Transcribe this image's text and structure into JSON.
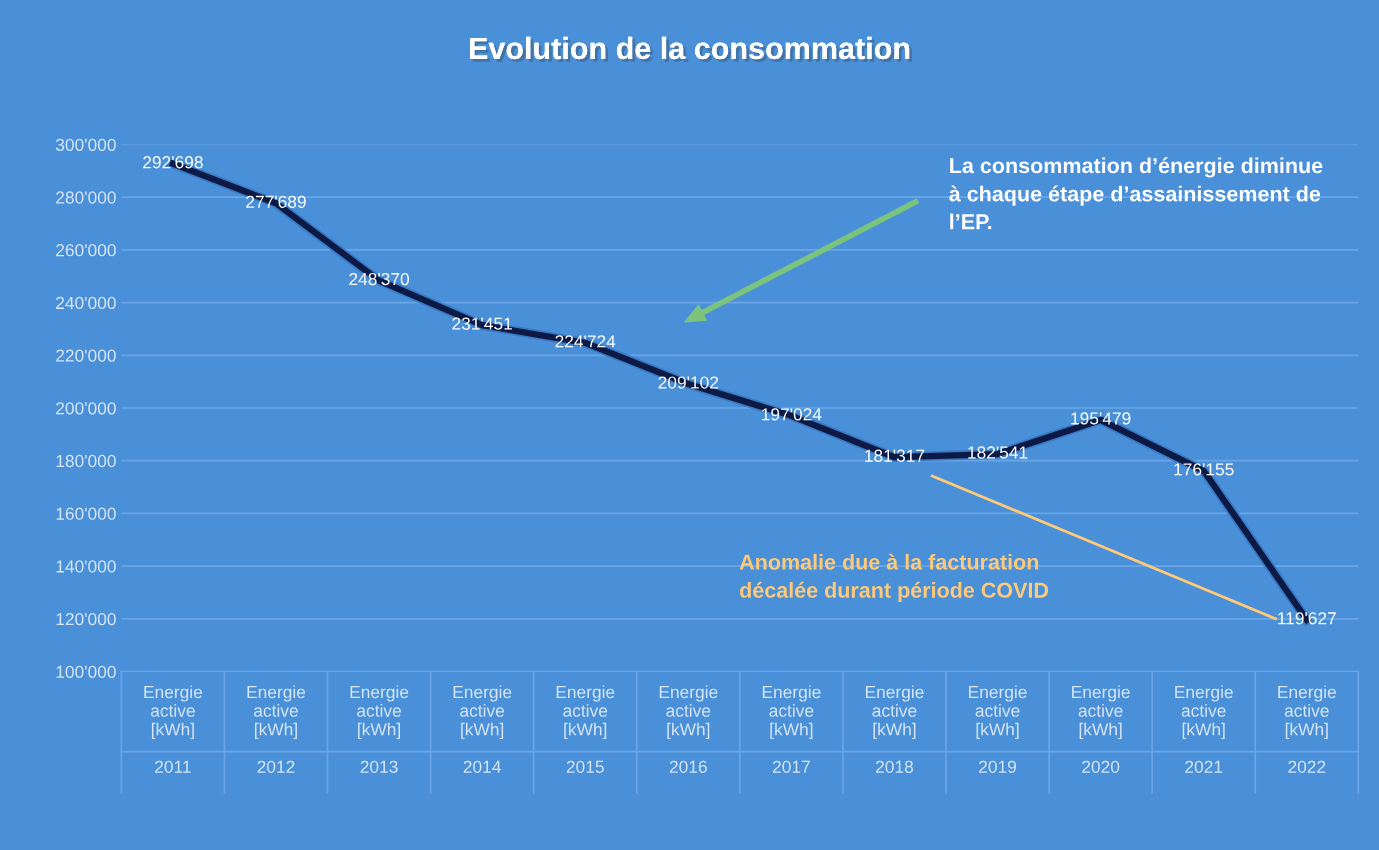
{
  "chart_data": {
    "type": "line",
    "title": "Evolution de la consommation",
    "categories": [
      "Energie\nactive\n[kWh]\n\n2011",
      "Energie\nactive\n[kWh]\n\n2012",
      "Energie\nactive\n[kWh]\n\n2013",
      "Energie\nactive\n[kWh]\n\n2014",
      "Energie\nactive\n[kWh]\n\n2015",
      "Energie\nactive\n[kWh]\n\n2016",
      "Energie\nactive\n[kWh]\n\n2017",
      "Energie\nactive\n[kWh]\n\n2018",
      "Energie\nactive\n[kWh]\n\n2019",
      "Energie\nactive\n[kWh]\n\n2020",
      "Energie\nactive\n[kWh]\n\n2021",
      "Energie\nactive\n[kWh]\n\n2022"
    ],
    "series": [
      {
        "color": "#0d1a45",
        "values": [
          292698,
          277689,
          248370,
          231451,
          224724,
          209102,
          197024,
          181317,
          182541,
          195479,
          176155,
          119627
        ],
        "value_labels": [
          "292'698",
          "277'689",
          "248'370",
          "231'451",
          "224'724",
          "209'102",
          "197'024",
          "181'317",
          "182'541",
          "195'479",
          "176'155",
          "119'627"
        ]
      }
    ],
    "ylim": [
      100000,
      300000
    ],
    "yticks": [
      {
        "value": 100000,
        "label": "100'000"
      },
      {
        "value": 120000,
        "label": "120'000"
      },
      {
        "value": 140000,
        "label": "140'000"
      },
      {
        "value": 160000,
        "label": "160'000"
      },
      {
        "value": 180000,
        "label": "180'000"
      },
      {
        "value": 200000,
        "label": "200'000"
      },
      {
        "value": 220000,
        "label": "220'000"
      },
      {
        "value": 240000,
        "label": "240'000"
      },
      {
        "value": 260000,
        "label": "260'000"
      },
      {
        "value": 280000,
        "label": "280'000"
      },
      {
        "value": 300000,
        "label": "300'000"
      }
    ],
    "grid": "y",
    "marker": "none",
    "line_style": "solid",
    "annotations": [
      "La consommation d’énergie diminue\nà chaque étape d’assainissement de\nl’EP.",
      "Anomalie due à la facturation\ndécalée durant période COVID"
    ]
  }
}
